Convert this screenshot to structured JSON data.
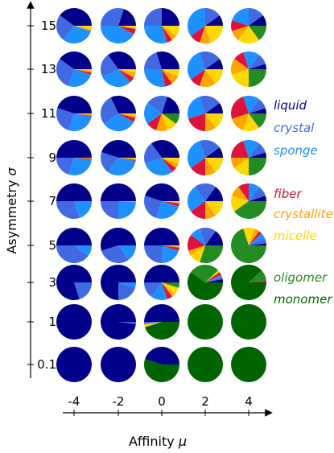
{
  "chart_data": {
    "type": "pie",
    "xlabel": "Affinity ",
    "xlabel_symbol": "μ",
    "ylabel": "Asymmetry ",
    "ylabel_symbol": "σ",
    "x_ticks": [
      "-4",
      "-2",
      "0",
      "2",
      "4"
    ],
    "y_ticks": [
      "15",
      "13",
      "11",
      "9",
      "7",
      "5",
      "3",
      "1",
      "0.1"
    ],
    "categories": [
      "liquid",
      "crystal",
      "sponge",
      "fiber",
      "crystallite",
      "micelle",
      "oligomer",
      "monomer"
    ],
    "colors": {
      "liquid": "#00008b",
      "crystal": "#4169e1",
      "sponge": "#1e90ff",
      "fiber": "#dc143c",
      "crystallite": "#ffa500",
      "micelle": "#ffd700",
      "oligomer": "#228b22",
      "monomer": "#006400"
    },
    "legend": {
      "placement": "right",
      "entries": [
        "liquid",
        "crystal",
        "sponge",
        "fiber",
        "crystallite",
        "micelle",
        "oligomer",
        "monomer"
      ]
    },
    "pies": [
      {
        "mu": "-4",
        "sigma": "15",
        "values": [
          0.4,
          0.25,
          0.3,
          0.0,
          0.02,
          0.03,
          0.0,
          0.0
        ]
      },
      {
        "mu": "-2",
        "sigma": "15",
        "values": [
          0.2,
          0.3,
          0.42,
          0.05,
          0.01,
          0.02,
          0.0,
          0.0
        ]
      },
      {
        "mu": "0",
        "sigma": "15",
        "values": [
          0.25,
          0.25,
          0.3,
          0.05,
          0.05,
          0.1,
          0.0,
          0.0
        ]
      },
      {
        "mu": "2",
        "sigma": "15",
        "values": [
          0.1,
          0.15,
          0.35,
          0.1,
          0.1,
          0.2,
          0.0,
          0.0
        ]
      },
      {
        "mu": "4",
        "sigma": "15",
        "values": [
          0.1,
          0.15,
          0.2,
          0.1,
          0.1,
          0.2,
          0.15,
          0.0
        ]
      },
      {
        "mu": "-4",
        "sigma": "13",
        "values": [
          0.4,
          0.3,
          0.25,
          0.02,
          0.02,
          0.01,
          0.0,
          0.0
        ]
      },
      {
        "mu": "-2",
        "sigma": "13",
        "values": [
          0.35,
          0.22,
          0.3,
          0.05,
          0.05,
          0.03,
          0.0,
          0.0
        ]
      },
      {
        "mu": "0",
        "sigma": "13",
        "values": [
          0.3,
          0.2,
          0.28,
          0.07,
          0.08,
          0.07,
          0.0,
          0.0
        ]
      },
      {
        "mu": "2",
        "sigma": "13",
        "values": [
          0.1,
          0.2,
          0.3,
          0.1,
          0.15,
          0.15,
          0.0,
          0.0
        ]
      },
      {
        "mu": "4",
        "sigma": "13",
        "values": [
          0.05,
          0.1,
          0.15,
          0.1,
          0.15,
          0.2,
          0.25,
          0.0
        ]
      },
      {
        "mu": "-4",
        "sigma": "11",
        "values": [
          0.45,
          0.25,
          0.27,
          0.01,
          0.01,
          0.01,
          0.0,
          0.0
        ]
      },
      {
        "mu": "-2",
        "sigma": "11",
        "values": [
          0.32,
          0.28,
          0.32,
          0.04,
          0.02,
          0.02,
          0.0,
          0.0
        ]
      },
      {
        "mu": "0",
        "sigma": "11",
        "values": [
          0.2,
          0.2,
          0.2,
          0.1,
          0.1,
          0.1,
          0.1,
          0.0
        ]
      },
      {
        "mu": "2",
        "sigma": "11",
        "values": [
          0.1,
          0.2,
          0.25,
          0.2,
          0.1,
          0.15,
          0.0,
          0.0
        ]
      },
      {
        "mu": "4",
        "sigma": "11",
        "values": [
          0.05,
          0.1,
          0.15,
          0.25,
          0.15,
          0.15,
          0.15,
          0.0
        ]
      },
      {
        "mu": "-4",
        "sigma": "9",
        "values": [
          0.5,
          0.2,
          0.28,
          0.01,
          0.01,
          0.0,
          0.0,
          0.0
        ]
      },
      {
        "mu": "-2",
        "sigma": "9",
        "values": [
          0.45,
          0.2,
          0.32,
          0.01,
          0.01,
          0.01,
          0.0,
          0.0
        ]
      },
      {
        "mu": "0",
        "sigma": "9",
        "values": [
          0.35,
          0.2,
          0.3,
          0.05,
          0.05,
          0.05,
          0.0,
          0.0
        ]
      },
      {
        "mu": "2",
        "sigma": "9",
        "values": [
          0.1,
          0.2,
          0.3,
          0.15,
          0.1,
          0.15,
          0.0,
          0.0
        ]
      },
      {
        "mu": "4",
        "sigma": "9",
        "values": [
          0.05,
          0.1,
          0.15,
          0.2,
          0.1,
          0.15,
          0.25,
          0.0
        ]
      },
      {
        "mu": "-4",
        "sigma": "7",
        "values": [
          0.5,
          0.3,
          0.2,
          0.0,
          0.0,
          0.0,
          0.0,
          0.0
        ]
      },
      {
        "mu": "-2",
        "sigma": "7",
        "values": [
          0.5,
          0.25,
          0.24,
          0.0,
          0.01,
          0.0,
          0.0,
          0.0
        ]
      },
      {
        "mu": "0",
        "sigma": "7",
        "values": [
          0.45,
          0.25,
          0.25,
          0.03,
          0.01,
          0.01,
          0.0,
          0.0
        ]
      },
      {
        "mu": "2",
        "sigma": "7",
        "values": [
          0.15,
          0.2,
          0.25,
          0.15,
          0.1,
          0.15,
          0.0,
          0.0
        ]
      },
      {
        "mu": "4",
        "sigma": "7",
        "values": [
          0.05,
          0.1,
          0.1,
          0.1,
          0.1,
          0.15,
          0.4,
          0.0
        ]
      },
      {
        "mu": "-4",
        "sigma": "5",
        "values": [
          0.5,
          0.4,
          0.1,
          0.0,
          0.0,
          0.0,
          0.0,
          0.0
        ]
      },
      {
        "mu": "-2",
        "sigma": "5",
        "values": [
          0.55,
          0.3,
          0.15,
          0.0,
          0.0,
          0.0,
          0.0,
          0.0
        ]
      },
      {
        "mu": "0",
        "sigma": "5",
        "values": [
          0.5,
          0.25,
          0.2,
          0.03,
          0.01,
          0.01,
          0.0,
          0.0
        ]
      },
      {
        "mu": "2",
        "sigma": "5",
        "values": [
          0.15,
          0.15,
          0.1,
          0.15,
          0.05,
          0.1,
          0.3,
          0.0
        ]
      },
      {
        "mu": "4",
        "sigma": "5",
        "values": [
          0.02,
          0.05,
          0.05,
          0.03,
          0.05,
          0.1,
          0.7,
          0.0
        ]
      },
      {
        "mu": "-4",
        "sigma": "3",
        "values": [
          0.8,
          0.2,
          0.0,
          0.0,
          0.0,
          0.0,
          0.0,
          0.0
        ]
      },
      {
        "mu": "-2",
        "sigma": "3",
        "values": [
          0.75,
          0.2,
          0.05,
          0.0,
          0.0,
          0.0,
          0.0,
          0.0
        ]
      },
      {
        "mu": "0",
        "sigma": "3",
        "values": [
          0.5,
          0.15,
          0.15,
          0.05,
          0.03,
          0.07,
          0.05,
          0.0
        ]
      },
      {
        "mu": "2",
        "sigma": "3",
        "values": [
          0.03,
          0.02,
          0.02,
          0.03,
          0.0,
          0.02,
          0.28,
          0.6
        ]
      },
      {
        "mu": "4",
        "sigma": "3",
        "values": [
          0.0,
          0.0,
          0.0,
          0.02,
          0.0,
          0.0,
          0.1,
          0.88
        ]
      },
      {
        "mu": "-4",
        "sigma": "1",
        "values": [
          1.0,
          0.0,
          0.0,
          0.0,
          0.0,
          0.0,
          0.0,
          0.0
        ]
      },
      {
        "mu": "-2",
        "sigma": "1",
        "values": [
          0.98,
          0.02,
          0.0,
          0.0,
          0.0,
          0.0,
          0.0,
          0.0
        ]
      },
      {
        "mu": "0",
        "sigma": "1",
        "values": [
          0.5,
          0.02,
          0.0,
          0.0,
          0.01,
          0.02,
          0.0,
          0.45
        ]
      },
      {
        "mu": "2",
        "sigma": "1",
        "values": [
          0.0,
          0.0,
          0.0,
          0.0,
          0.0,
          0.0,
          0.0,
          1.0
        ]
      },
      {
        "mu": "4",
        "sigma": "1",
        "values": [
          0.0,
          0.0,
          0.0,
          0.0,
          0.0,
          0.0,
          0.0,
          1.0
        ]
      },
      {
        "mu": "-4",
        "sigma": "0.1",
        "values": [
          1.0,
          0.0,
          0.0,
          0.0,
          0.0,
          0.0,
          0.0,
          0.0
        ]
      },
      {
        "mu": "-2",
        "sigma": "0.1",
        "values": [
          1.0,
          0.0,
          0.0,
          0.0,
          0.0,
          0.0,
          0.0,
          0.0
        ]
      },
      {
        "mu": "0",
        "sigma": "0.1",
        "values": [
          0.45,
          0.0,
          0.0,
          0.0,
          0.0,
          0.0,
          0.0,
          0.55
        ]
      },
      {
        "mu": "2",
        "sigma": "0.1",
        "values": [
          0.0,
          0.0,
          0.0,
          0.0,
          0.0,
          0.0,
          0.0,
          1.0
        ]
      },
      {
        "mu": "4",
        "sigma": "0.1",
        "values": [
          0.0,
          0.0,
          0.0,
          0.0,
          0.0,
          0.0,
          0.0,
          1.0
        ]
      }
    ]
  }
}
